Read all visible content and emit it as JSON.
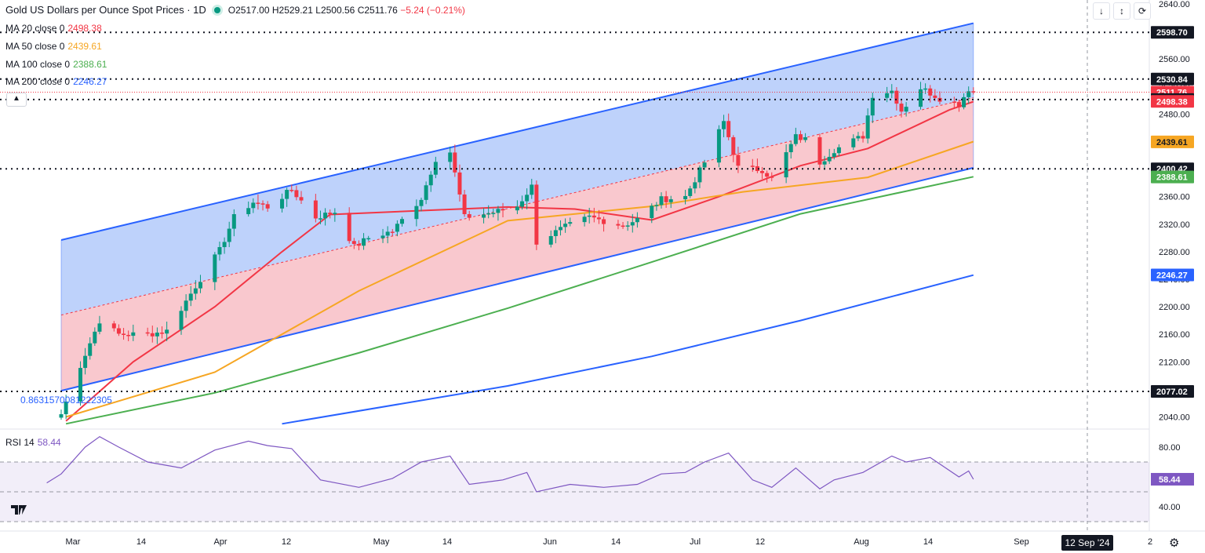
{
  "header": {
    "title": "Gold US Dollars per Ounce Spot Prices · 1D",
    "open_label": "O",
    "open": "2517.00",
    "high_label": "H",
    "high": "2529.21",
    "low_label": "L",
    "low": "2500.56",
    "close_label": "C",
    "close": "2511.76",
    "change": "−5.24 (−0.21%)"
  },
  "indicators": [
    {
      "label": "MA 20 close 0",
      "value": "2498.38",
      "color": "#f23645"
    },
    {
      "label": "MA 50 close 0",
      "value": "2439.61",
      "color": "#f6a623"
    },
    {
      "label": "MA 100 close 0",
      "value": "2388.61",
      "color": "#4caf50"
    },
    {
      "label": "MA 200 close 0",
      "value": "2246.27",
      "color": "#2962ff"
    }
  ],
  "fib_label": "0.8631570081222305",
  "rsi": {
    "label": "RSI 14",
    "value": "58.44",
    "ticks": [
      "80.00",
      "60.00",
      "40.00"
    ]
  },
  "x_axis": {
    "ticks": [
      "Mar",
      "14",
      "Apr",
      "12",
      "May",
      "14",
      "Jun",
      "14",
      "Jul",
      "12",
      "Aug",
      "14",
      "Sep",
      "2"
    ],
    "crosshair_date": "12 Sep '24"
  },
  "icons": [
    "chevron-up-icon",
    "arrow-down-icon",
    "collapse-icon",
    "refresh-icon",
    "tradingview-logo-icon",
    "settings-gear-icon"
  ],
  "colors": {
    "up": "#089981",
    "down": "#f23645",
    "channel_upper": "#2962ff",
    "channel_fill_top": "#bbd0fb",
    "channel_fill_bottom": "#f9c5cb",
    "rsi_line": "#7e57c2"
  },
  "chart_data": {
    "type": "candlestick",
    "title": "Gold US Dollars per Ounce Spot Prices · 1D",
    "y_ticks": [
      "2640.00",
      "2600.00",
      "2560.00",
      "2520.00",
      "2480.00",
      "2440.00",
      "2400.00",
      "2360.00",
      "2320.00",
      "2280.00",
      "2240.00",
      "2200.00",
      "2160.00",
      "2120.00",
      "2080.00",
      "2040.00"
    ],
    "ylim": [
      2030,
      2650
    ],
    "price_levels": [
      {
        "value": 2598.7,
        "label": "2598.70",
        "style": "dotted",
        "color": "#131722"
      },
      {
        "value": 2530.84,
        "label": "2530.84",
        "style": "dotted",
        "color": "#131722"
      },
      {
        "value": 2511.76,
        "label": "2511.76",
        "style": "dotted",
        "color": "#f23645"
      },
      {
        "value": 2501.15,
        "label": "2501.15",
        "style": "dotted",
        "color": "#131722"
      },
      {
        "value": 2498.38,
        "label": "2498.38",
        "color": "#f23645"
      },
      {
        "value": 2439.61,
        "label": "2439.61",
        "color": "#f6a623"
      },
      {
        "value": 2400.42,
        "label": "2400.42",
        "style": "dotted",
        "color": "#131722"
      },
      {
        "value": 2388.61,
        "label": "2388.61",
        "color": "#4caf50"
      },
      {
        "value": 2246.27,
        "label": "2246.27",
        "color": "#2962ff"
      },
      {
        "value": 2077.02,
        "label": "2077.02",
        "style": "dotted",
        "color": "#131722"
      }
    ],
    "anchors": [
      {
        "date": "2024-02-29",
        "close": 2044
      },
      {
        "date": "2024-03-04",
        "close": 2115
      },
      {
        "date": "2024-03-08",
        "close": 2180
      },
      {
        "date": "2024-03-12",
        "close": 2160
      },
      {
        "date": "2024-03-18",
        "close": 2160
      },
      {
        "date": "2024-03-22",
        "close": 2165
      },
      {
        "date": "2024-03-28",
        "close": 2230
      },
      {
        "date": "2024-04-02",
        "close": 2282
      },
      {
        "date": "2024-04-05",
        "close": 2330
      },
      {
        "date": "2024-04-09",
        "close": 2352
      },
      {
        "date": "2024-04-12",
        "close": 2345
      },
      {
        "date": "2024-04-17",
        "close": 2370
      },
      {
        "date": "2024-04-22",
        "close": 2330
      },
      {
        "date": "2024-04-26",
        "close": 2338
      },
      {
        "date": "2024-04-30",
        "close": 2287
      },
      {
        "date": "2024-05-03",
        "close": 2300
      },
      {
        "date": "2024-05-08",
        "close": 2310
      },
      {
        "date": "2024-05-14",
        "close": 2358
      },
      {
        "date": "2024-05-17",
        "close": 2415
      },
      {
        "date": "2024-05-20",
        "close": 2425
      },
      {
        "date": "2024-05-23",
        "close": 2330
      },
      {
        "date": "2024-05-29",
        "close": 2337
      },
      {
        "date": "2024-06-03",
        "close": 2346
      },
      {
        "date": "2024-06-06",
        "close": 2375
      },
      {
        "date": "2024-06-07",
        "close": 2294
      },
      {
        "date": "2024-06-13",
        "close": 2316
      },
      {
        "date": "2024-06-18",
        "close": 2330
      },
      {
        "date": "2024-06-21",
        "close": 2325
      },
      {
        "date": "2024-06-25",
        "close": 2318
      },
      {
        "date": "2024-06-28",
        "close": 2327
      },
      {
        "date": "2024-07-03",
        "close": 2356
      },
      {
        "date": "2024-07-08",
        "close": 2360
      },
      {
        "date": "2024-07-12",
        "close": 2410
      },
      {
        "date": "2024-07-16",
        "close": 2469
      },
      {
        "date": "2024-07-19",
        "close": 2402
      },
      {
        "date": "2024-07-24",
        "close": 2399
      },
      {
        "date": "2024-07-26",
        "close": 2386
      },
      {
        "date": "2024-07-31",
        "close": 2447
      },
      {
        "date": "2024-08-02",
        "close": 2443
      },
      {
        "date": "2024-08-05",
        "close": 2410
      },
      {
        "date": "2024-08-08",
        "close": 2428
      },
      {
        "date": "2024-08-14",
        "close": 2448
      },
      {
        "date": "2024-08-16",
        "close": 2508
      },
      {
        "date": "2024-08-20",
        "close": 2514
      },
      {
        "date": "2024-08-22",
        "close": 2485
      },
      {
        "date": "2024-08-26",
        "close": 2518
      },
      {
        "date": "2024-08-30",
        "close": 2503
      },
      {
        "date": "2024-09-03",
        "close": 2494
      },
      {
        "date": "2024-09-05",
        "close": 2517
      },
      {
        "date": "2024-09-06",
        "close": 2512
      }
    ],
    "channel": {
      "start_date": "2024-02-29",
      "end_date": "2024-09-06",
      "lower_start": 2078,
      "lower_end": 2402,
      "mid_start": 2188,
      "mid_end": 2504,
      "upper_start": 2297,
      "upper_end": 2612
    },
    "ma_series": [
      {
        "name": "MA 20",
        "color": "#f23645",
        "points": [
          [
            "2024-03-01",
            2034
          ],
          [
            "2024-03-15",
            2120
          ],
          [
            "2024-04-01",
            2200
          ],
          [
            "2024-04-15",
            2280
          ],
          [
            "2024-04-25",
            2334
          ],
          [
            "2024-05-15",
            2340
          ],
          [
            "2024-06-01",
            2345
          ],
          [
            "2024-06-15",
            2342
          ],
          [
            "2024-07-01",
            2326
          ],
          [
            "2024-07-15",
            2360
          ],
          [
            "2024-08-01",
            2405
          ],
          [
            "2024-08-15",
            2430
          ],
          [
            "2024-09-01",
            2486
          ],
          [
            "2024-09-06",
            2498
          ]
        ]
      },
      {
        "name": "MA 50",
        "color": "#f6a623",
        "points": [
          [
            "2024-03-01",
            2040
          ],
          [
            "2024-04-01",
            2105
          ],
          [
            "2024-05-01",
            2223
          ],
          [
            "2024-06-01",
            2325
          ],
          [
            "2024-07-01",
            2346
          ],
          [
            "2024-07-20",
            2367
          ],
          [
            "2024-08-15",
            2388
          ],
          [
            "2024-09-06",
            2440
          ]
        ]
      },
      {
        "name": "MA 100",
        "color": "#4caf50",
        "points": [
          [
            "2024-03-01",
            2030
          ],
          [
            "2024-04-01",
            2075
          ],
          [
            "2024-05-01",
            2133
          ],
          [
            "2024-06-01",
            2198
          ],
          [
            "2024-07-01",
            2265
          ],
          [
            "2024-08-01",
            2335
          ],
          [
            "2024-09-06",
            2389
          ]
        ]
      },
      {
        "name": "MA 200",
        "color": "#2962ff",
        "points": [
          [
            "2024-04-15",
            2030
          ],
          [
            "2024-06-01",
            2085
          ],
          [
            "2024-07-01",
            2128
          ],
          [
            "2024-08-01",
            2180
          ],
          [
            "2024-09-06",
            2246
          ]
        ]
      }
    ],
    "rsi_points": [
      [
        "2024-02-26",
        56
      ],
      [
        "2024-02-29",
        62
      ],
      [
        "2024-03-05",
        80
      ],
      [
        "2024-03-08",
        87
      ],
      [
        "2024-03-12",
        80
      ],
      [
        "2024-03-18",
        70
      ],
      [
        "2024-03-25",
        66
      ],
      [
        "2024-04-01",
        78
      ],
      [
        "2024-04-08",
        84
      ],
      [
        "2024-04-12",
        81
      ],
      [
        "2024-04-17",
        79
      ],
      [
        "2024-04-23",
        58
      ],
      [
        "2024-05-01",
        53
      ],
      [
        "2024-05-08",
        59
      ],
      [
        "2024-05-14",
        70
      ],
      [
        "2024-05-20",
        74
      ],
      [
        "2024-05-24",
        55
      ],
      [
        "2024-05-31",
        58
      ],
      [
        "2024-06-05",
        63
      ],
      [
        "2024-06-07",
        50
      ],
      [
        "2024-06-14",
        55
      ],
      [
        "2024-06-21",
        53
      ],
      [
        "2024-06-28",
        55
      ],
      [
        "2024-07-03",
        62
      ],
      [
        "2024-07-08",
        63
      ],
      [
        "2024-07-12",
        70
      ],
      [
        "2024-07-17",
        76
      ],
      [
        "2024-07-22",
        58
      ],
      [
        "2024-07-26",
        53
      ],
      [
        "2024-07-31",
        66
      ],
      [
        "2024-08-05",
        52
      ],
      [
        "2024-08-08",
        58
      ],
      [
        "2024-08-14",
        63
      ],
      [
        "2024-08-20",
        74
      ],
      [
        "2024-08-23",
        70
      ],
      [
        "2024-08-28",
        73
      ],
      [
        "2024-09-03",
        60
      ],
      [
        "2024-09-05",
        64
      ],
      [
        "2024-09-06",
        58.44
      ]
    ],
    "rsi_ylim": [
      35,
      95
    ],
    "rsi_band": [
      30,
      70
    ]
  }
}
